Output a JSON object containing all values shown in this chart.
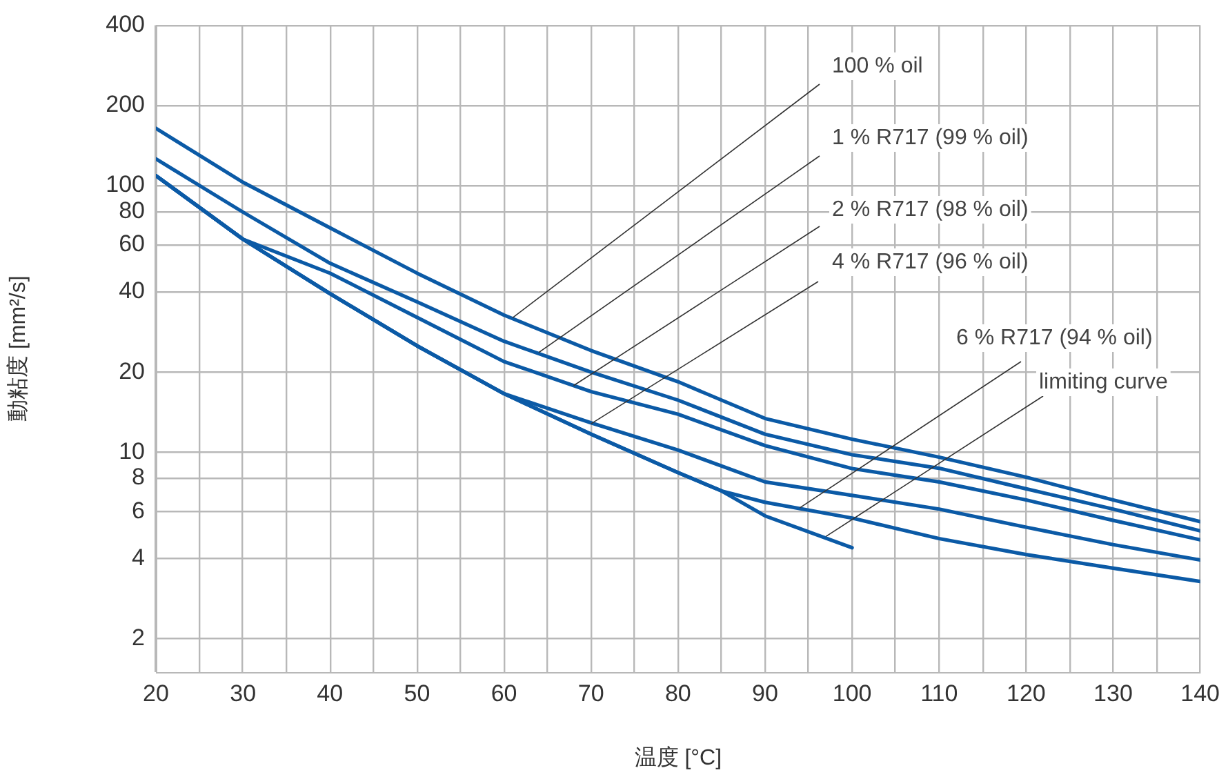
{
  "chart_data": {
    "type": "line",
    "xlabel": "温度 [°C]",
    "ylabel": "動粘度 [mm²/s]",
    "x": [
      20,
      30,
      40,
      50,
      60,
      70,
      80,
      90,
      100,
      110,
      120,
      130,
      140
    ],
    "series": [
      {
        "color": "#0b5aa6",
        "values": [
          164,
          103,
          69.5,
          47,
          32.7,
          24.1,
          18.4,
          13.4,
          11.2,
          9.6,
          8.07,
          6.63,
          5.5
        ]
      },
      {
        "color": "#0b5aa6",
        "values": [
          126,
          79.6,
          51.2,
          36.7,
          26.1,
          20,
          15.7,
          11.7,
          9.8,
          8.72,
          7.3,
          6.13,
          5.08
        ]
      },
      {
        "color": "#0b5aa6",
        "values": [
          109,
          63,
          47,
          32.1,
          21.9,
          16.9,
          13.9,
          10.6,
          8.7,
          7.75,
          6.63,
          5.56,
          4.7
        ]
      },
      {
        "color": "#0b5aa6",
        "values": [
          109,
          63,
          39.4,
          25.1,
          16.6,
          12.9,
          10.2,
          7.75,
          6.9,
          6.13,
          5.24,
          4.51,
          3.95
        ]
      },
      {
        "color": "#0b5aa6",
        "x": [
          20,
          30,
          40,
          50,
          60,
          70,
          80,
          85,
          90,
          100,
          110,
          120,
          130,
          140
        ],
        "values": [
          109,
          63,
          39.4,
          25.1,
          16.6,
          11.7,
          8.4,
          7.17,
          6.5,
          5.67,
          4.75,
          4.14,
          3.68,
          3.28
        ]
      },
      {
        "color": "#0b5aa6",
        "x": [
          20,
          30,
          40,
          50,
          60,
          70,
          80,
          85,
          90,
          100
        ],
        "values": [
          109,
          63,
          39.4,
          25.1,
          16.6,
          11.7,
          8.4,
          7.17,
          5.78,
          4.39
        ]
      }
    ],
    "annotations": [
      {
        "text": "100 % oil",
        "x": 61,
        "y": 32
      },
      {
        "text": "1 % R717 (99 % oil)",
        "x": 64,
        "y": 23.7
      },
      {
        "text": "2 % R717 (98 % oil)",
        "x": 68,
        "y": 17.8
      },
      {
        "text": "4 % R717 (96 % oil)",
        "x": 70,
        "y": 12.8
      },
      {
        "text": "6 % R717 (94 % oil)",
        "x": 94,
        "y": 6.2
      },
      {
        "text": "limiting curve",
        "x": 97,
        "y": 4.84
      }
    ],
    "xlim": [
      20,
      140
    ],
    "xticks": [
      20,
      {
        "value": 25,
        "label": null
      },
      30,
      {
        "value": 35,
        "label": null
      },
      40,
      {
        "value": 45,
        "label": null
      },
      50,
      {
        "value": 55,
        "label": null
      },
      60,
      {
        "value": 65,
        "label": null
      },
      70,
      {
        "value": 75,
        "label": null
      },
      80,
      {
        "value": 85,
        "label": null
      },
      90,
      {
        "value": 95,
        "label": null
      },
      100,
      {
        "value": 105,
        "label": null
      },
      110,
      {
        "value": 115,
        "label": null
      },
      120,
      {
        "value": 125,
        "label": null
      },
      130,
      {
        "value": 135,
        "label": null
      },
      140
    ],
    "ylim": [
      1.5,
      400
    ],
    "yticks": [
      2,
      4,
      6,
      8,
      10,
      20,
      40,
      60,
      80,
      100,
      200,
      400
    ],
    "log": "y",
    "grid": true,
    "legend": false,
    "marker": "none",
    "line_style": "solid"
  }
}
